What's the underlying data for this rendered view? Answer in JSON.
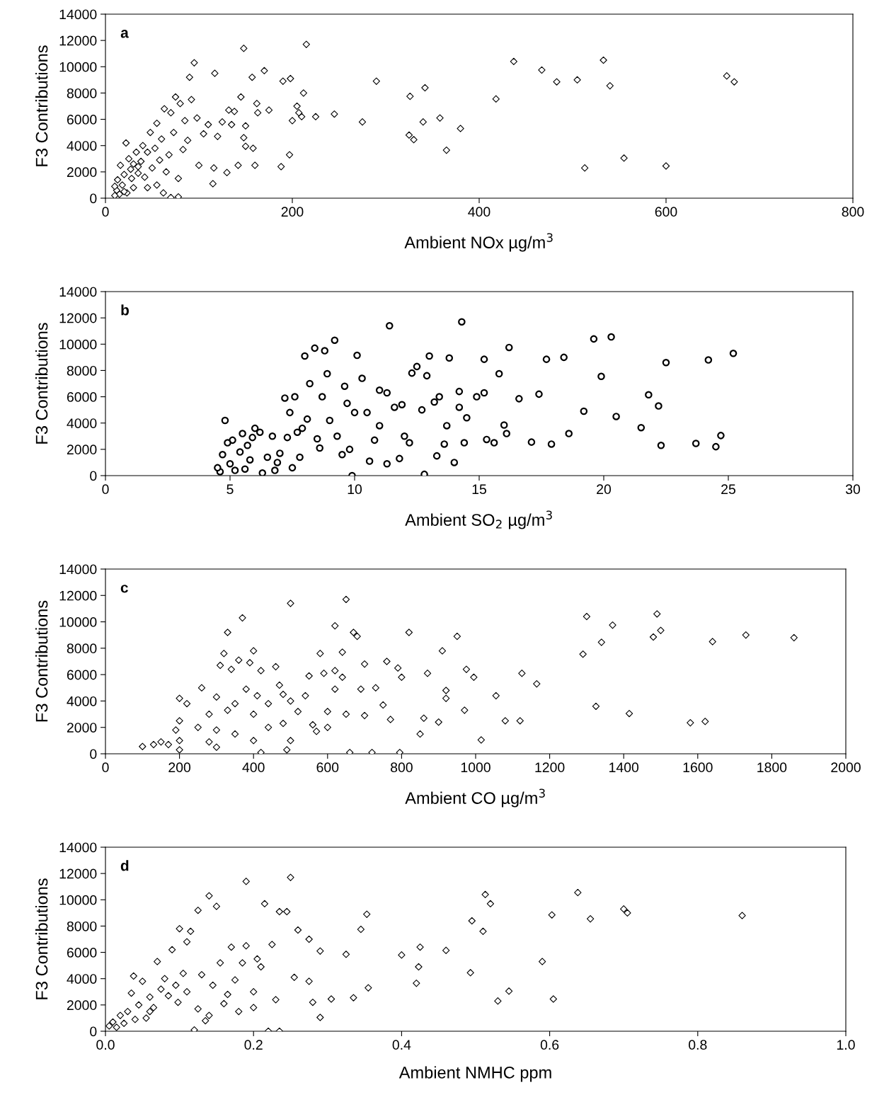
{
  "chart_data": [
    {
      "type": "scatter",
      "title": "a",
      "xlabel": "Ambient NOx µg/m$^{3}$",
      "ylabel": "F3 Contributions",
      "xlim": [
        0,
        800
      ],
      "xticks": [
        0,
        200,
        400,
        600,
        800
      ],
      "ylim": [
        0,
        14000
      ],
      "yticks": [
        0,
        2000,
        4000,
        6000,
        8000,
        10000,
        12000,
        14000
      ],
      "marker": "diamond",
      "grid": false,
      "legend": false,
      "series": [
        {
          "color": "#000000",
          "x": [
            437,
            467,
            483,
            505,
            533,
            540,
            513,
            555,
            600,
            665,
            673,
            418,
            380,
            365,
            358,
            342,
            340,
            326,
            325,
            330,
            290,
            275,
            245,
            225,
            215,
            212,
            210,
            205,
            207,
            200,
            198,
            197,
            190,
            188,
            170,
            175,
            162,
            163,
            160,
            157,
            158,
            150,
            148,
            148,
            150,
            145,
            142,
            138,
            135,
            132,
            130,
            125,
            120,
            117,
            116,
            115,
            110,
            105,
            100,
            98,
            95,
            92,
            90,
            88,
            85,
            83,
            80,
            78,
            75,
            73,
            70,
            68,
            65,
            63,
            62,
            60,
            58,
            55,
            53,
            50,
            48,
            45,
            42,
            40,
            38,
            35,
            33,
            30,
            30,
            28,
            25,
            23,
            22,
            20,
            18,
            16,
            15,
            13,
            12,
            10,
            10,
            78,
            70,
            55,
            45,
            35,
            27,
            20
          ],
          "values": [
            10400,
            9750,
            8850,
            9000,
            10500,
            8550,
            2300,
            3050,
            2450,
            9300,
            8850,
            7550,
            5300,
            3650,
            6100,
            8400,
            5800,
            7750,
            4800,
            4450,
            8900,
            5800,
            6400,
            6200,
            11700,
            8000,
            6200,
            7000,
            6500,
            5900,
            9100,
            3300,
            8900,
            2400,
            9700,
            6700,
            7200,
            6500,
            2500,
            9200,
            3800,
            5500,
            11400,
            4600,
            3950,
            7700,
            2500,
            6600,
            5600,
            6700,
            1950,
            5800,
            4700,
            9500,
            2300,
            1100,
            5600,
            4900,
            2500,
            6100,
            10300,
            7500,
            9200,
            4400,
            5900,
            3700,
            7200,
            1500,
            7700,
            5000,
            6500,
            3300,
            2000,
            6800,
            400,
            4500,
            2900,
            5700,
            3800,
            2300,
            5000,
            3500,
            1600,
            4000,
            2800,
            1900,
            3500,
            800,
            2600,
            1500,
            3000,
            400,
            4200,
            1800,
            1000,
            2500,
            300,
            1400,
            600,
            200,
            900,
            100,
            50,
            1000,
            800,
            2400,
            2200,
            500
          ]
        }
      ]
    },
    {
      "type": "scatter",
      "title": "b",
      "xlabel": "Ambient SO$_{2}$ µg/m$^{3}$",
      "ylabel": "F3 Contributions",
      "xlim": [
        0,
        30
      ],
      "xticks": [
        0,
        5,
        10,
        15,
        20,
        25,
        30
      ],
      "ylim": [
        0,
        14000
      ],
      "yticks": [
        0,
        2000,
        4000,
        6000,
        8000,
        10000,
        12000,
        14000
      ],
      "marker": "circle",
      "grid": false,
      "legend": false,
      "series": [
        {
          "color": "#000000",
          "x": [
            25.2,
            24.7,
            24.5,
            24.2,
            23.7,
            22.5,
            22.3,
            22.2,
            21.8,
            21.5,
            20.5,
            20.3,
            19.9,
            19.6,
            19.2,
            18.6,
            18.4,
            17.9,
            17.7,
            17.4,
            17.1,
            16.6,
            16.2,
            16.1,
            16.0,
            15.8,
            15.6,
            15.3,
            15.2,
            15.2,
            14.9,
            14.5,
            14.4,
            14.3,
            14.2,
            14.0,
            14.2,
            13.8,
            13.7,
            13.6,
            13.4,
            13.3,
            13.0,
            12.9,
            12.8,
            12.7,
            12.5,
            12.3,
            12.2,
            11.9,
            11.6,
            11.4,
            11.3,
            11.3,
            11.0,
            11.0,
            10.8,
            10.5,
            10.3,
            10.1,
            10.0,
            9.9,
            9.8,
            9.6,
            9.5,
            9.2,
            9.0,
            8.9,
            8.8,
            8.7,
            8.5,
            8.4,
            8.2,
            8.1,
            8.0,
            7.9,
            7.8,
            7.6,
            7.5,
            7.4,
            7.3,
            7.2,
            7.0,
            6.8,
            6.7,
            6.5,
            6.3,
            6.2,
            6.0,
            5.8,
            5.7,
            5.6,
            5.5,
            5.4,
            5.2,
            5.1,
            5.0,
            4.9,
            4.8,
            4.7,
            4.6,
            4.5,
            8.6,
            9.3,
            10.6,
            11.8,
            12.0,
            7.7,
            6.9,
            5.9,
            13.2,
            9.7
          ],
          "values": [
            9300,
            3050,
            2200,
            8800,
            2450,
            8600,
            2300,
            5300,
            6150,
            3650,
            4500,
            10550,
            7550,
            10400,
            4900,
            3200,
            9000,
            2400,
            8850,
            6200,
            2550,
            5850,
            9750,
            3200,
            3850,
            7750,
            2500,
            2750,
            6300,
            8850,
            6000,
            4400,
            2500,
            11700,
            6400,
            1000,
            5200,
            8950,
            3800,
            2400,
            6000,
            1500,
            9100,
            7600,
            100,
            5000,
            8300,
            7800,
            2500,
            5400,
            5200,
            11400,
            900,
            6300,
            6500,
            3800,
            2700,
            4800,
            7400,
            9150,
            4800,
            0,
            2000,
            6800,
            1600,
            10300,
            4200,
            7750,
            9500,
            6000,
            2800,
            9700,
            7000,
            4300,
            9100,
            3600,
            1400,
            6000,
            600,
            4800,
            2900,
            5900,
            1700,
            400,
            3000,
            1400,
            200,
            3300,
            3600,
            1200,
            2300,
            500,
            3200,
            1800,
            400,
            2700,
            900,
            2500,
            4200,
            1600,
            300,
            600,
            2100,
            3000,
            1100,
            1300,
            3000,
            3300,
            1000,
            2900,
            5600,
            5500
          ]
        }
      ]
    },
    {
      "type": "scatter",
      "title": "c",
      "xlabel": "Ambient CO µg/m$^{3}$",
      "ylabel": "F3 Contributions",
      "xlim": [
        0,
        2000
      ],
      "xticks": [
        0,
        200,
        400,
        600,
        800,
        1000,
        1200,
        1400,
        1600,
        1800,
        2000
      ],
      "ylim": [
        0,
        14000
      ],
      "yticks": [
        0,
        2000,
        4000,
        6000,
        8000,
        10000,
        12000,
        14000
      ],
      "marker": "diamond",
      "grid": false,
      "legend": false,
      "series": [
        {
          "color": "#000000",
          "x": [
            1860,
            1730,
            1640,
            1620,
            1580,
            1500,
            1490,
            1480,
            1415,
            1370,
            1340,
            1325,
            1300,
            1290,
            1165,
            1125,
            1120,
            1080,
            1055,
            1015,
            995,
            975,
            970,
            950,
            920,
            920,
            910,
            900,
            870,
            850,
            860,
            820,
            800,
            795,
            790,
            760,
            750,
            730,
            720,
            700,
            690,
            680,
            670,
            650,
            650,
            640,
            620,
            620,
            600,
            600,
            580,
            570,
            550,
            540,
            520,
            500,
            500,
            500,
            490,
            480,
            460,
            440,
            420,
            410,
            400,
            400,
            400,
            390,
            380,
            370,
            360,
            350,
            330,
            320,
            310,
            300,
            300,
            300,
            280,
            260,
            220,
            200,
            200,
            200,
            200,
            190,
            170,
            150,
            130,
            100,
            480,
            350,
            250,
            440,
            560,
            620,
            700,
            660,
            770,
            590,
            640,
            330,
            280,
            420,
            340,
            470
          ],
          "values": [
            8800,
            9000,
            8500,
            2450,
            2350,
            9350,
            10600,
            8850,
            3050,
            9750,
            8450,
            3600,
            10400,
            7550,
            5300,
            6100,
            2500,
            2500,
            4400,
            1050,
            5800,
            6400,
            3300,
            8900,
            4800,
            4200,
            7800,
            2400,
            6100,
            1500,
            2700,
            9200,
            5800,
            100,
            6500,
            7000,
            3700,
            5000,
            100,
            6800,
            4900,
            8900,
            9200,
            11700,
            3000,
            5800,
            9700,
            6300,
            3200,
            2000,
            7600,
            1700,
            5900,
            4400,
            3200,
            11400,
            1000,
            4000,
            300,
            4500,
            6600,
            2000,
            6300,
            4400,
            7800,
            1000,
            3000,
            6900,
            4900,
            10300,
            7100,
            3800,
            9200,
            7600,
            6700,
            4300,
            1800,
            500,
            3000,
            5000,
            3800,
            4200,
            2500,
            1000,
            300,
            1800,
            700,
            900,
            700,
            550,
            2300,
            1500,
            2000,
            3800,
            2200,
            4900,
            2900,
            100,
            2600,
            6100,
            7700,
            3300,
            900,
            100,
            6400,
            5200
          ]
        }
      ]
    },
    {
      "type": "scatter",
      "title": "d",
      "xlabel": "Ambient NMHC ppm",
      "ylabel": "F3 Contributions",
      "xlim": [
        0,
        1
      ],
      "xticks": [
        {
          "value": 0,
          "label": "0.0"
        },
        0.2,
        0.4,
        0.6,
        0.8,
        {
          "value": 1,
          "label": "1.0"
        }
      ],
      "ylim": [
        0,
        14000
      ],
      "yticks": [
        0,
        2000,
        4000,
        6000,
        8000,
        10000,
        12000,
        14000
      ],
      "marker": "diamond",
      "grid": false,
      "legend": false,
      "series": [
        {
          "color": "#000000",
          "x": [
            0.86,
            0.705,
            0.7,
            0.655,
            0.638,
            0.605,
            0.603,
            0.59,
            0.545,
            0.53,
            0.52,
            0.513,
            0.51,
            0.495,
            0.493,
            0.46,
            0.425,
            0.423,
            0.42,
            0.4,
            0.355,
            0.353,
            0.345,
            0.335,
            0.325,
            0.305,
            0.29,
            0.29,
            0.275,
            0.275,
            0.26,
            0.255,
            0.25,
            0.245,
            0.235,
            0.235,
            0.22,
            0.225,
            0.215,
            0.21,
            0.2,
            0.19,
            0.19,
            0.185,
            0.18,
            0.175,
            0.17,
            0.16,
            0.155,
            0.15,
            0.145,
            0.14,
            0.135,
            0.13,
            0.125,
            0.12,
            0.115,
            0.11,
            0.105,
            0.1,
            0.098,
            0.09,
            0.085,
            0.08,
            0.075,
            0.07,
            0.065,
            0.06,
            0.05,
            0.045,
            0.04,
            0.038,
            0.035,
            0.03,
            0.025,
            0.02,
            0.015,
            0.01,
            0.005,
            0.055,
            0.095,
            0.125,
            0.165,
            0.205,
            0.23,
            0.28,
            0.14,
            0.06,
            0.11,
            0.2
          ],
          "values": [
            8800,
            9000,
            9300,
            8550,
            10550,
            2450,
            8850,
            5300,
            3050,
            2300,
            9700,
            10400,
            7600,
            8400,
            4450,
            6150,
            6400,
            4900,
            3650,
            5800,
            3300,
            8900,
            7750,
            2550,
            5850,
            2450,
            1050,
            6100,
            7000,
            3800,
            7700,
            4100,
            11700,
            9100,
            9100,
            0,
            0,
            6600,
            9700,
            4900,
            3000,
            11400,
            6500,
            5200,
            1500,
            3900,
            6400,
            2100,
            5200,
            9500,
            3500,
            10300,
            800,
            4300,
            9200,
            100,
            7600,
            6800,
            4400,
            7800,
            2200,
            6200,
            2700,
            4000,
            3200,
            5300,
            1800,
            2600,
            3800,
            2000,
            900,
            4200,
            2900,
            1500,
            600,
            1200,
            300,
            700,
            400,
            1000,
            3500,
            1700,
            2800,
            5500,
            2400,
            2200,
            1200,
            1500,
            3000,
            1800
          ]
        }
      ]
    }
  ]
}
